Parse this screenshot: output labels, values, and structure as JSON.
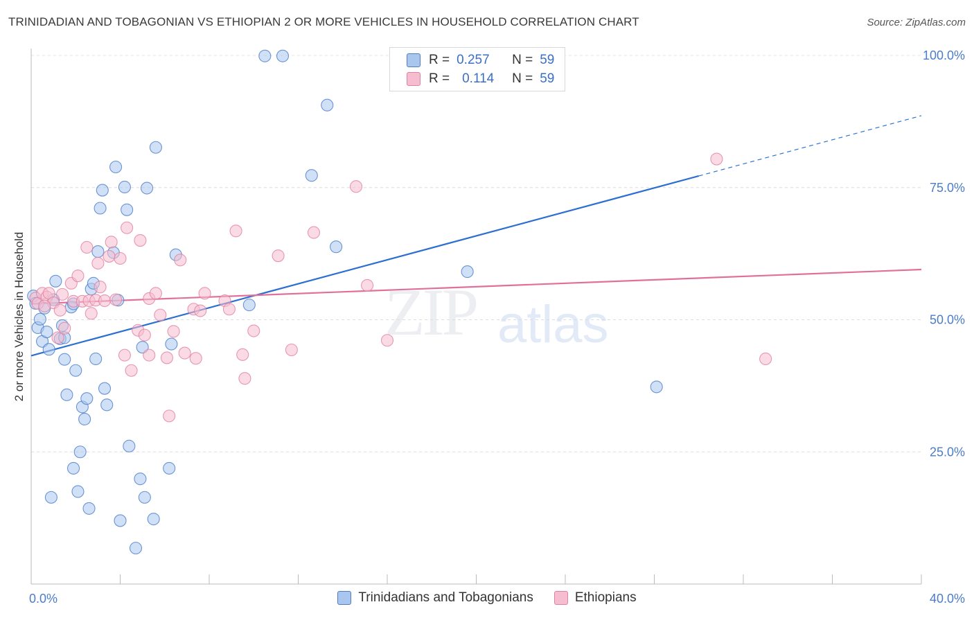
{
  "header": {
    "title": "TRINIDADIAN AND TOBAGONIAN VS ETHIOPIAN 2 OR MORE VEHICLES IN HOUSEHOLD CORRELATION CHART",
    "source": "Source: ZipAtlas.com"
  },
  "watermark": {
    "zip": "ZIP",
    "atlas": "atlas"
  },
  "legend": {
    "r_label": "R =",
    "n_label": "N =",
    "series1": {
      "r": "0.257",
      "n": "59"
    },
    "series2": {
      "r": "0.114",
      "n": "59"
    }
  },
  "colors": {
    "blue_fill": "#a9c6ee",
    "blue_stroke": "#4a7cc9",
    "blue_line": "#2d6fd1",
    "pink_fill": "#f6bdd0",
    "pink_stroke": "#e2809f",
    "pink_line": "#e0709a"
  },
  "chart_data": {
    "type": "scatter",
    "title": "TRINIDADIAN AND TOBAGONIAN VS ETHIOPIAN 2 OR MORE VEHICLES IN HOUSEHOLD CORRELATION CHART",
    "xlabel": "",
    "ylabel": "2 or more Vehicles in Household",
    "xlim": [
      0,
      40
    ],
    "ylim": [
      0,
      105
    ],
    "x_tick_labels": [
      "0.0%",
      "40.0%"
    ],
    "y_tick_labels": [
      "25.0%",
      "50.0%",
      "75.0%",
      "100.0%"
    ],
    "y_ticks": [
      25,
      50,
      75,
      100
    ],
    "grid": true,
    "legend_position": "top-center",
    "series": [
      {
        "name": "Trinidadians and Tobagonians",
        "points": [
          [
            0.1,
            54.5
          ],
          [
            0.2,
            53.1
          ],
          [
            0.3,
            48.5
          ],
          [
            0.4,
            50.1
          ],
          [
            0.5,
            45.9
          ],
          [
            0.6,
            52.2
          ],
          [
            0.7,
            47.7
          ],
          [
            0.8,
            44.4
          ],
          [
            0.9,
            16.4
          ],
          [
            1.0,
            53.8
          ],
          [
            1.1,
            57.3
          ],
          [
            1.3,
            46.4
          ],
          [
            1.4,
            48.9
          ],
          [
            1.5,
            46.6
          ],
          [
            1.5,
            42.5
          ],
          [
            1.6,
            35.8
          ],
          [
            1.8,
            52.4
          ],
          [
            1.9,
            53.0
          ],
          [
            1.9,
            21.9
          ],
          [
            2.0,
            40.4
          ],
          [
            2.1,
            17.5
          ],
          [
            2.2,
            25.0
          ],
          [
            2.3,
            33.5
          ],
          [
            2.4,
            31.2
          ],
          [
            2.5,
            35.1
          ],
          [
            2.6,
            14.3
          ],
          [
            2.7,
            55.8
          ],
          [
            2.8,
            56.9
          ],
          [
            2.9,
            42.6
          ],
          [
            3.0,
            62.9
          ],
          [
            3.1,
            71.1
          ],
          [
            3.2,
            74.5
          ],
          [
            3.3,
            37.0
          ],
          [
            3.4,
            33.9
          ],
          [
            3.7,
            62.7
          ],
          [
            3.8,
            78.9
          ],
          [
            3.9,
            53.7
          ],
          [
            4.0,
            12.0
          ],
          [
            4.2,
            75.1
          ],
          [
            4.3,
            70.8
          ],
          [
            4.4,
            26.1
          ],
          [
            4.7,
            6.8
          ],
          [
            4.9,
            19.9
          ],
          [
            5.0,
            44.8
          ],
          [
            5.1,
            16.4
          ],
          [
            5.2,
            74.9
          ],
          [
            5.5,
            12.3
          ],
          [
            5.6,
            82.6
          ],
          [
            6.2,
            21.9
          ],
          [
            6.3,
            45.4
          ],
          [
            6.5,
            62.3
          ],
          [
            9.8,
            52.8
          ],
          [
            10.5,
            99.9
          ],
          [
            11.3,
            99.9
          ],
          [
            12.6,
            77.3
          ],
          [
            13.3,
            90.6
          ],
          [
            13.7,
            63.8
          ],
          [
            19.6,
            59.1
          ],
          [
            28.1,
            37.3
          ]
        ]
      },
      {
        "name": "Ethiopians",
        "points": [
          [
            0.2,
            54.1
          ],
          [
            0.3,
            53.1
          ],
          [
            0.5,
            55.0
          ],
          [
            0.7,
            54.3
          ],
          [
            0.8,
            55.0
          ],
          [
            1.0,
            53.2
          ],
          [
            1.2,
            46.6
          ],
          [
            1.3,
            51.8
          ],
          [
            1.5,
            48.4
          ],
          [
            1.8,
            56.9
          ],
          [
            1.9,
            53.5
          ],
          [
            2.1,
            58.3
          ],
          [
            2.3,
            53.5
          ],
          [
            2.5,
            63.7
          ],
          [
            2.6,
            53.6
          ],
          [
            2.7,
            51.2
          ],
          [
            2.9,
            53.7
          ],
          [
            3.0,
            60.7
          ],
          [
            3.1,
            56.2
          ],
          [
            3.3,
            53.6
          ],
          [
            3.5,
            62.0
          ],
          [
            3.6,
            64.7
          ],
          [
            3.8,
            53.8
          ],
          [
            4.0,
            61.6
          ],
          [
            4.2,
            43.3
          ],
          [
            4.3,
            67.4
          ],
          [
            4.5,
            40.4
          ],
          [
            4.8,
            48.0
          ],
          [
            4.9,
            65.0
          ],
          [
            5.1,
            47.1
          ],
          [
            5.3,
            43.3
          ],
          [
            5.3,
            54.0
          ],
          [
            5.6,
            55.0
          ],
          [
            5.8,
            50.9
          ],
          [
            6.1,
            42.8
          ],
          [
            6.2,
            31.8
          ],
          [
            6.4,
            47.8
          ],
          [
            6.7,
            61.3
          ],
          [
            6.9,
            43.7
          ],
          [
            7.3,
            52.0
          ],
          [
            7.4,
            42.7
          ],
          [
            7.6,
            51.7
          ],
          [
            7.8,
            55.0
          ],
          [
            8.7,
            53.6
          ],
          [
            8.9,
            52.0
          ],
          [
            9.2,
            66.8
          ],
          [
            9.5,
            43.4
          ],
          [
            9.6,
            38.9
          ],
          [
            10.0,
            47.9
          ],
          [
            11.1,
            62.1
          ],
          [
            11.7,
            44.3
          ],
          [
            12.7,
            66.5
          ],
          [
            14.6,
            75.2
          ],
          [
            15.1,
            56.5
          ],
          [
            16.0,
            46.1
          ],
          [
            30.8,
            80.4
          ],
          [
            33.0,
            42.6
          ],
          [
            1.4,
            54.8
          ],
          [
            0.6,
            52.6
          ]
        ]
      }
    ],
    "trendlines": [
      {
        "series": "Trinidadians and Tobagonians",
        "x": [
          0,
          30,
          40
        ],
        "y": [
          43.2,
          77.2,
          88.6
        ],
        "dashed_from": 30
      },
      {
        "series": "Ethiopians",
        "x": [
          0,
          40
        ],
        "y": [
          53.0,
          59.5
        ]
      }
    ]
  },
  "bottom_legend": {
    "series1_label": "Trinidadians and Tobagonians",
    "series2_label": "Ethiopians"
  }
}
